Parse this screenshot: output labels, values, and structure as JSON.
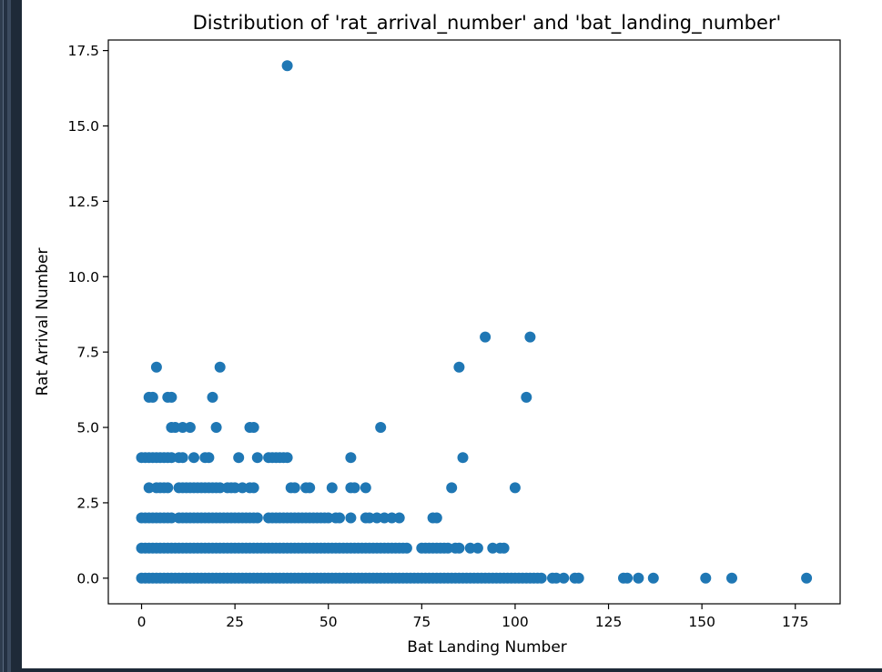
{
  "chart_data": {
    "type": "scatter",
    "title": "Distribution of 'rat_arrival_number' and 'bat_landing_number'",
    "xlabel": "Bat Landing Number",
    "ylabel": "Rat Arrival Number",
    "xlim": [
      -8.9,
      187
    ],
    "ylim": [
      -0.85,
      17.85
    ],
    "xticks": [
      0,
      25,
      50,
      75,
      100,
      125,
      150,
      175
    ],
    "xtick_labels": [
      "0",
      "25",
      "50",
      "75",
      "100",
      "125",
      "150",
      "175"
    ],
    "yticks": [
      0,
      2.5,
      5,
      7.5,
      10,
      12.5,
      15,
      17.5
    ],
    "ytick_labels": [
      "0.0",
      "2.5",
      "5.0",
      "7.5",
      "10.0",
      "12.5",
      "15.0",
      "17.5"
    ],
    "grid": false,
    "point_color": "#1f77b4",
    "points": [
      [
        0,
        0
      ],
      [
        1,
        0
      ],
      [
        2,
        0
      ],
      [
        3,
        0
      ],
      [
        4,
        0
      ],
      [
        5,
        0
      ],
      [
        6,
        0
      ],
      [
        7,
        0
      ],
      [
        8,
        0
      ],
      [
        9,
        0
      ],
      [
        10,
        0
      ],
      [
        11,
        0
      ],
      [
        12,
        0
      ],
      [
        13,
        0
      ],
      [
        14,
        0
      ],
      [
        15,
        0
      ],
      [
        16,
        0
      ],
      [
        17,
        0
      ],
      [
        18,
        0
      ],
      [
        19,
        0
      ],
      [
        20,
        0
      ],
      [
        21,
        0
      ],
      [
        22,
        0
      ],
      [
        23,
        0
      ],
      [
        24,
        0
      ],
      [
        25,
        0
      ],
      [
        26,
        0
      ],
      [
        27,
        0
      ],
      [
        28,
        0
      ],
      [
        29,
        0
      ],
      [
        30,
        0
      ],
      [
        31,
        0
      ],
      [
        32,
        0
      ],
      [
        33,
        0
      ],
      [
        34,
        0
      ],
      [
        35,
        0
      ],
      [
        36,
        0
      ],
      [
        37,
        0
      ],
      [
        38,
        0
      ],
      [
        39,
        0
      ],
      [
        40,
        0
      ],
      [
        41,
        0
      ],
      [
        42,
        0
      ],
      [
        43,
        0
      ],
      [
        44,
        0
      ],
      [
        45,
        0
      ],
      [
        46,
        0
      ],
      [
        47,
        0
      ],
      [
        48,
        0
      ],
      [
        49,
        0
      ],
      [
        50,
        0
      ],
      [
        51,
        0
      ],
      [
        52,
        0
      ],
      [
        53,
        0
      ],
      [
        54,
        0
      ],
      [
        55,
        0
      ],
      [
        56,
        0
      ],
      [
        57,
        0
      ],
      [
        58,
        0
      ],
      [
        59,
        0
      ],
      [
        60,
        0
      ],
      [
        61,
        0
      ],
      [
        62,
        0
      ],
      [
        63,
        0
      ],
      [
        64,
        0
      ],
      [
        65,
        0
      ],
      [
        66,
        0
      ],
      [
        67,
        0
      ],
      [
        68,
        0
      ],
      [
        69,
        0
      ],
      [
        70,
        0
      ],
      [
        71,
        0
      ],
      [
        72,
        0
      ],
      [
        73,
        0
      ],
      [
        74,
        0
      ],
      [
        75,
        0
      ],
      [
        76,
        0
      ],
      [
        77,
        0
      ],
      [
        78,
        0
      ],
      [
        79,
        0
      ],
      [
        80,
        0
      ],
      [
        81,
        0
      ],
      [
        82,
        0
      ],
      [
        83,
        0
      ],
      [
        84,
        0
      ],
      [
        85,
        0
      ],
      [
        86,
        0
      ],
      [
        87,
        0
      ],
      [
        88,
        0
      ],
      [
        89,
        0
      ],
      [
        90,
        0
      ],
      [
        91,
        0
      ],
      [
        92,
        0
      ],
      [
        93,
        0
      ],
      [
        94,
        0
      ],
      [
        95,
        0
      ],
      [
        96,
        0
      ],
      [
        97,
        0
      ],
      [
        98,
        0
      ],
      [
        99,
        0
      ],
      [
        100,
        0
      ],
      [
        101,
        0
      ],
      [
        102,
        0
      ],
      [
        103,
        0
      ],
      [
        104,
        0
      ],
      [
        105,
        0
      ],
      [
        106,
        0
      ],
      [
        107,
        0
      ],
      [
        110,
        0
      ],
      [
        111,
        0
      ],
      [
        113,
        0
      ],
      [
        116,
        0
      ],
      [
        117,
        0
      ],
      [
        129,
        0
      ],
      [
        130,
        0
      ],
      [
        133,
        0
      ],
      [
        137,
        0
      ],
      [
        151,
        0
      ],
      [
        158,
        0
      ],
      [
        178,
        0
      ],
      [
        0,
        1
      ],
      [
        1,
        1
      ],
      [
        2,
        1
      ],
      [
        3,
        1
      ],
      [
        4,
        1
      ],
      [
        5,
        1
      ],
      [
        6,
        1
      ],
      [
        7,
        1
      ],
      [
        8,
        1
      ],
      [
        9,
        1
      ],
      [
        10,
        1
      ],
      [
        11,
        1
      ],
      [
        12,
        1
      ],
      [
        13,
        1
      ],
      [
        14,
        1
      ],
      [
        15,
        1
      ],
      [
        16,
        1
      ],
      [
        17,
        1
      ],
      [
        18,
        1
      ],
      [
        19,
        1
      ],
      [
        20,
        1
      ],
      [
        21,
        1
      ],
      [
        22,
        1
      ],
      [
        23,
        1
      ],
      [
        24,
        1
      ],
      [
        25,
        1
      ],
      [
        26,
        1
      ],
      [
        27,
        1
      ],
      [
        28,
        1
      ],
      [
        29,
        1
      ],
      [
        30,
        1
      ],
      [
        31,
        1
      ],
      [
        32,
        1
      ],
      [
        33,
        1
      ],
      [
        34,
        1
      ],
      [
        35,
        1
      ],
      [
        36,
        1
      ],
      [
        37,
        1
      ],
      [
        38,
        1
      ],
      [
        39,
        1
      ],
      [
        40,
        1
      ],
      [
        41,
        1
      ],
      [
        42,
        1
      ],
      [
        43,
        1
      ],
      [
        44,
        1
      ],
      [
        45,
        1
      ],
      [
        46,
        1
      ],
      [
        47,
        1
      ],
      [
        48,
        1
      ],
      [
        49,
        1
      ],
      [
        50,
        1
      ],
      [
        51,
        1
      ],
      [
        52,
        1
      ],
      [
        53,
        1
      ],
      [
        54,
        1
      ],
      [
        55,
        1
      ],
      [
        56,
        1
      ],
      [
        57,
        1
      ],
      [
        58,
        1
      ],
      [
        59,
        1
      ],
      [
        60,
        1
      ],
      [
        61,
        1
      ],
      [
        62,
        1
      ],
      [
        63,
        1
      ],
      [
        64,
        1
      ],
      [
        65,
        1
      ],
      [
        66,
        1
      ],
      [
        67,
        1
      ],
      [
        68,
        1
      ],
      [
        69,
        1
      ],
      [
        70,
        1
      ],
      [
        71,
        1
      ],
      [
        75,
        1
      ],
      [
        76,
        1
      ],
      [
        77,
        1
      ],
      [
        78,
        1
      ],
      [
        79,
        1
      ],
      [
        80,
        1
      ],
      [
        81,
        1
      ],
      [
        82,
        1
      ],
      [
        84,
        1
      ],
      [
        85,
        1
      ],
      [
        88,
        1
      ],
      [
        90,
        1
      ],
      [
        94,
        1
      ],
      [
        96,
        1
      ],
      [
        97,
        1
      ],
      [
        0,
        2
      ],
      [
        1,
        2
      ],
      [
        2,
        2
      ],
      [
        3,
        2
      ],
      [
        4,
        2
      ],
      [
        5,
        2
      ],
      [
        6,
        2
      ],
      [
        7,
        2
      ],
      [
        8,
        2
      ],
      [
        10,
        2
      ],
      [
        11,
        2
      ],
      [
        12,
        2
      ],
      [
        13,
        2
      ],
      [
        14,
        2
      ],
      [
        15,
        2
      ],
      [
        16,
        2
      ],
      [
        17,
        2
      ],
      [
        18,
        2
      ],
      [
        19,
        2
      ],
      [
        20,
        2
      ],
      [
        21,
        2
      ],
      [
        22,
        2
      ],
      [
        23,
        2
      ],
      [
        24,
        2
      ],
      [
        25,
        2
      ],
      [
        26,
        2
      ],
      [
        27,
        2
      ],
      [
        28,
        2
      ],
      [
        29,
        2
      ],
      [
        30,
        2
      ],
      [
        31,
        2
      ],
      [
        34,
        2
      ],
      [
        35,
        2
      ],
      [
        36,
        2
      ],
      [
        37,
        2
      ],
      [
        38,
        2
      ],
      [
        39,
        2
      ],
      [
        40,
        2
      ],
      [
        41,
        2
      ],
      [
        42,
        2
      ],
      [
        43,
        2
      ],
      [
        44,
        2
      ],
      [
        45,
        2
      ],
      [
        46,
        2
      ],
      [
        47,
        2
      ],
      [
        48,
        2
      ],
      [
        49,
        2
      ],
      [
        50,
        2
      ],
      [
        52,
        2
      ],
      [
        53,
        2
      ],
      [
        56,
        2
      ],
      [
        60,
        2
      ],
      [
        61,
        2
      ],
      [
        63,
        2
      ],
      [
        65,
        2
      ],
      [
        67,
        2
      ],
      [
        69,
        2
      ],
      [
        78,
        2
      ],
      [
        79,
        2
      ],
      [
        2,
        3
      ],
      [
        4,
        3
      ],
      [
        5,
        3
      ],
      [
        6,
        3
      ],
      [
        7,
        3
      ],
      [
        10,
        3
      ],
      [
        11,
        3
      ],
      [
        12,
        3
      ],
      [
        13,
        3
      ],
      [
        14,
        3
      ],
      [
        15,
        3
      ],
      [
        16,
        3
      ],
      [
        17,
        3
      ],
      [
        18,
        3
      ],
      [
        19,
        3
      ],
      [
        20,
        3
      ],
      [
        21,
        3
      ],
      [
        23,
        3
      ],
      [
        24,
        3
      ],
      [
        25,
        3
      ],
      [
        27,
        3
      ],
      [
        29,
        3
      ],
      [
        30,
        3
      ],
      [
        40,
        3
      ],
      [
        41,
        3
      ],
      [
        44,
        3
      ],
      [
        45,
        3
      ],
      [
        51,
        3
      ],
      [
        56,
        3
      ],
      [
        57,
        3
      ],
      [
        60,
        3
      ],
      [
        83,
        3
      ],
      [
        100,
        3
      ],
      [
        0,
        4
      ],
      [
        1,
        4
      ],
      [
        2,
        4
      ],
      [
        3,
        4
      ],
      [
        4,
        4
      ],
      [
        5,
        4
      ],
      [
        6,
        4
      ],
      [
        7,
        4
      ],
      [
        8,
        4
      ],
      [
        10,
        4
      ],
      [
        11,
        4
      ],
      [
        14,
        4
      ],
      [
        17,
        4
      ],
      [
        18,
        4
      ],
      [
        26,
        4
      ],
      [
        31,
        4
      ],
      [
        34,
        4
      ],
      [
        35,
        4
      ],
      [
        36,
        4
      ],
      [
        37,
        4
      ],
      [
        38,
        4
      ],
      [
        39,
        4
      ],
      [
        56,
        4
      ],
      [
        86,
        4
      ],
      [
        8,
        5
      ],
      [
        9,
        5
      ],
      [
        11,
        5
      ],
      [
        13,
        5
      ],
      [
        20,
        5
      ],
      [
        29,
        5
      ],
      [
        30,
        5
      ],
      [
        64,
        5
      ],
      [
        2,
        6
      ],
      [
        3,
        6
      ],
      [
        7,
        6
      ],
      [
        8,
        6
      ],
      [
        19,
        6
      ],
      [
        103,
        6
      ],
      [
        4,
        7
      ],
      [
        21,
        7
      ],
      [
        85,
        7
      ],
      [
        92,
        8
      ],
      [
        104,
        8
      ],
      [
        39,
        17
      ]
    ]
  }
}
